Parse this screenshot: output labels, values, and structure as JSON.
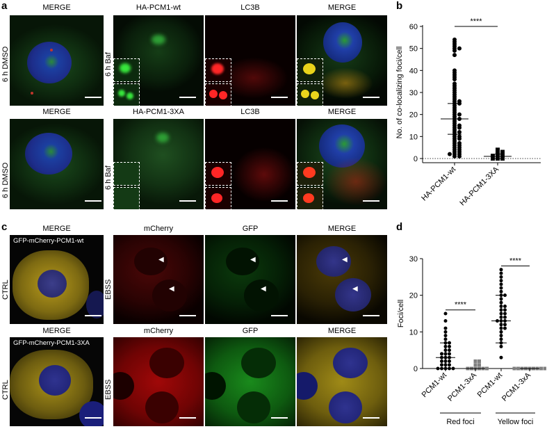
{
  "panel_labels": {
    "a": "a",
    "b": "b",
    "c": "c",
    "d": "d"
  },
  "a": {
    "row1": {
      "merge_title": "MERGE",
      "ctrl_label": "6 h DMSO",
      "treat_label": "6 h Baf",
      "col_titles": [
        "HA-PCM1-wt",
        "LC3B",
        "MERGE"
      ]
    },
    "row2": {
      "merge_title": "MERGE",
      "ctrl_label": "6 h DMSO",
      "treat_label": "6 h Baf",
      "col_titles": [
        "HA-PCM1-3XA",
        "LC3B",
        "MERGE"
      ]
    }
  },
  "c": {
    "row1": {
      "merge_title": "MERGE",
      "ctrl_label": "CTRL",
      "treat_label": "EBSS",
      "inset_caption": "GFP-mCherry-PCM1-wt",
      "col_titles": [
        "mCherry",
        "GFP",
        "MERGE"
      ]
    },
    "row2": {
      "merge_title": "MERGE",
      "ctrl_label": "CTRL",
      "treat_label": "EBSS",
      "inset_caption": "GFP-mCherry-PCM1-3XA",
      "col_titles": [
        "mCherry",
        "GFP",
        "MERGE"
      ]
    }
  },
  "chart_data": [
    {
      "type": "scatter",
      "title": "",
      "ylabel": "No. of co-localizing foci/cell",
      "ylim": [
        0,
        60
      ],
      "yticks": [
        0,
        10,
        20,
        30,
        40,
        50,
        60
      ],
      "categories": [
        "HA-PCM1-wt",
        "HA-PCM1-3XA"
      ],
      "significance": "****",
      "series": [
        {
          "values": [
            54,
            53,
            52,
            51,
            50,
            50,
            49,
            47,
            40,
            39,
            38,
            37,
            36,
            34,
            33,
            32,
            31,
            30,
            29,
            28,
            27,
            26,
            26,
            25,
            25,
            24,
            23,
            22,
            21,
            20,
            20,
            19,
            18,
            18,
            17,
            16,
            15,
            15,
            14,
            14,
            13,
            12,
            12,
            11,
            10,
            10,
            9,
            9,
            8,
            7,
            7,
            6,
            6,
            5,
            5,
            4,
            4,
            3,
            3,
            2,
            2,
            2,
            1,
            1
          ],
          "mean": 18,
          "sd_low": 11,
          "sd_high": 25,
          "color": "#000000",
          "marker": "circle"
        },
        {
          "values": [
            4,
            3,
            3,
            2,
            2,
            1,
            1,
            1,
            0,
            0,
            0
          ],
          "mean": 1,
          "sd_low": 0,
          "sd_high": 2,
          "color": "#000000",
          "marker": "square"
        }
      ]
    },
    {
      "type": "scatter",
      "title": "",
      "ylabel": "Foci/cell",
      "ylim": [
        0,
        30
      ],
      "yticks": [
        0,
        10,
        20,
        30
      ],
      "categories": [
        "PCM1-wt",
        "PCM1-3xA",
        "PCM1-wt",
        "PCM1-3xA"
      ],
      "groups": [
        {
          "label": "Red foci",
          "span": [
            0,
            1
          ]
        },
        {
          "label": "Yellow foci",
          "span": [
            2,
            3
          ]
        }
      ],
      "significance": [
        "****",
        "****"
      ],
      "series": [
        {
          "values": [
            15,
            13,
            11,
            10,
            9,
            8,
            7,
            7,
            6,
            6,
            5,
            5,
            4,
            4,
            4,
            3,
            3,
            3,
            2,
            2,
            2,
            1,
            1,
            1,
            0,
            0,
            0,
            0,
            0
          ],
          "mean": 3,
          "sd_low": 0,
          "sd_high": 7,
          "color": "#000000",
          "marker": "circle"
        },
        {
          "values": [
            2,
            2,
            1,
            1,
            0,
            0,
            0,
            0,
            0,
            0
          ],
          "mean": 0,
          "sd_low": 0,
          "sd_high": 0,
          "color": "#808080",
          "marker": "square"
        },
        {
          "values": [
            27,
            26,
            25,
            24,
            23,
            22,
            21,
            20,
            20,
            19,
            18,
            17,
            17,
            16,
            16,
            15,
            15,
            14,
            14,
            13,
            13,
            13,
            12,
            12,
            11,
            11,
            10,
            9,
            8,
            7,
            6,
            3
          ],
          "mean": 13,
          "sd_low": 7,
          "sd_high": 20,
          "color": "#000000",
          "marker": "circle"
        },
        {
          "values": [
            0,
            0,
            0,
            0,
            0,
            0,
            0,
            0,
            0,
            0
          ],
          "mean": 0,
          "sd_low": 0,
          "sd_high": 0,
          "color": "#808080",
          "marker": "square"
        }
      ]
    }
  ]
}
